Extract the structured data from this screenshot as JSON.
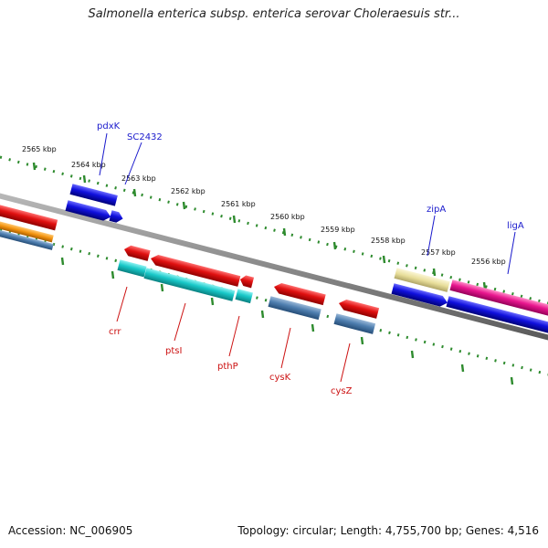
{
  "title": "Salmonella enterica subsp. enterica serovar Choleraesuis str...",
  "footer": {
    "accession": "Accession: NC_006905",
    "topology": "Topology: circular; Length: 4,755,700 bp; Genes: 4,516"
  },
  "scale_labels": [
    "2565 kbp",
    "2564 kbp",
    "2563 kbp",
    "2562 kbp",
    "2561 kbp",
    "2560 kbp",
    "2559 kbp",
    "2558 kbp",
    "2557 kbp",
    "2556 kbp"
  ],
  "genes_above": [
    "pdxK",
    "SC2432",
    "zipA",
    "ligA"
  ],
  "genes_below": [
    "crr",
    "ptsI",
    "pthP",
    "cysK",
    "cysZ"
  ],
  "colors": {
    "backbone": "#8a8a8a",
    "ticks": "#2e8b2e",
    "forward_gene": "#e01010",
    "reverse_gene": "#1010dd",
    "cds_cyan": "#18c8c8",
    "cds_steel": "#4f7fb0",
    "cds_magenta": "#e8168e",
    "cds_khaki": "#e8de9a",
    "cds_orange": "#f39410",
    "label_blue": "#1a1acc",
    "label_red": "#cc1111"
  }
}
